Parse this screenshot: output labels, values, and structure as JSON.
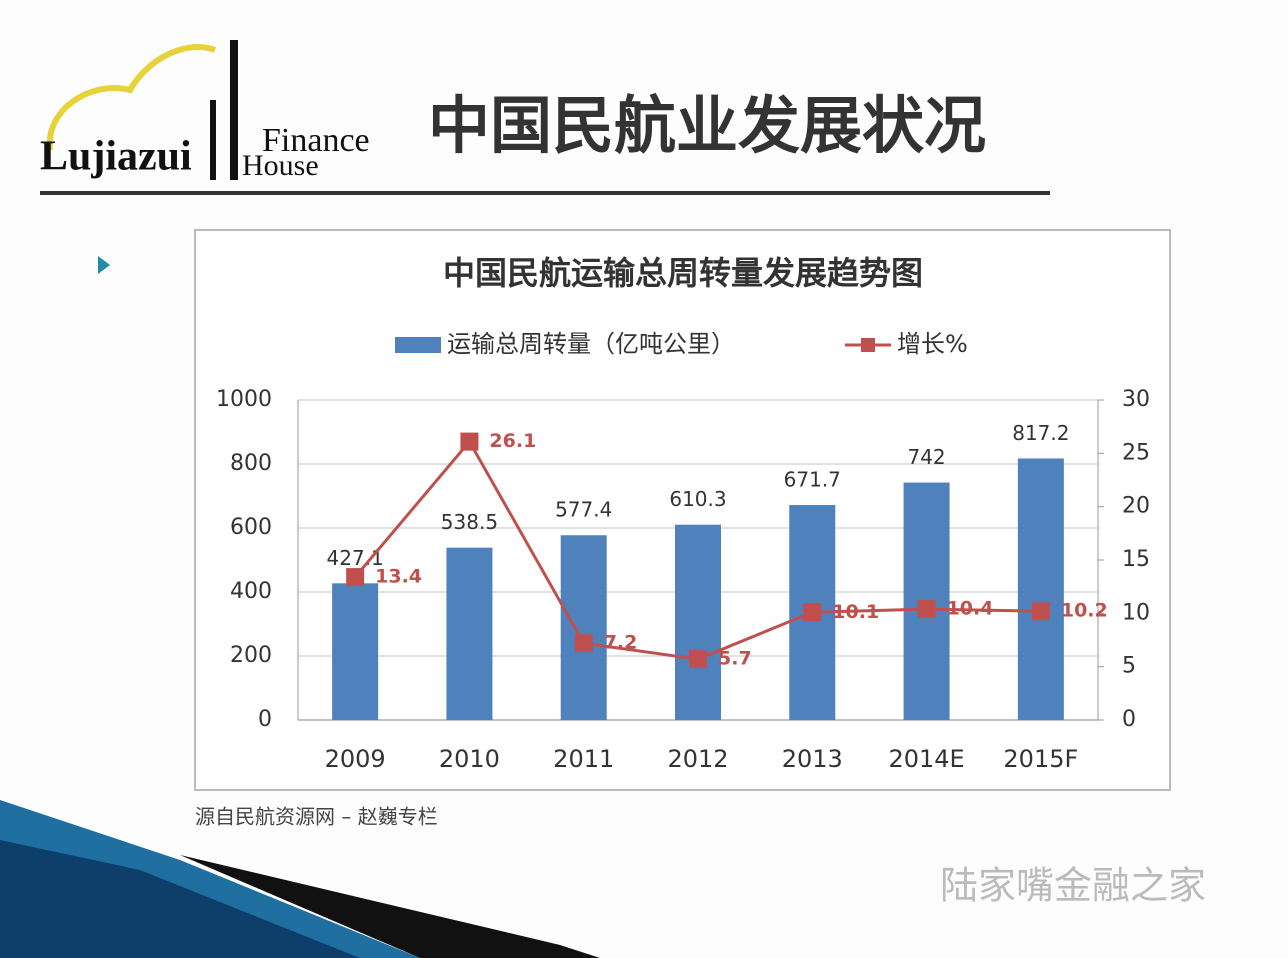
{
  "logo": {
    "main": "Lujiazui",
    "line1": "Finance",
    "line2": "House"
  },
  "slide_title": "中国民航业发展状况",
  "source": "源自民航资源网 – 赵巍专栏",
  "watermark": "陆家嘴金融之家",
  "chart_data": {
    "type": "bar",
    "title": "中国民航运输总周转量发展趋势图",
    "categories": [
      "2009",
      "2010",
      "2011",
      "2012",
      "2013",
      "2014E",
      "2015F"
    ],
    "series": [
      {
        "name": "运输总周转量（亿吨公里）",
        "type": "bar",
        "color": "#4f81bd",
        "values": [
          427.1,
          538.5,
          577.4,
          610.3,
          671.7,
          742,
          817.2
        ]
      },
      {
        "name": "增长%",
        "type": "line",
        "axis": "y2",
        "color": "#c0504d",
        "values": [
          13.4,
          26.1,
          7.2,
          5.7,
          10.1,
          10.4,
          10.2
        ]
      }
    ],
    "ylim": [
      0,
      1000
    ],
    "yticks": [
      0,
      200,
      400,
      600,
      800,
      1000
    ],
    "y2lim": [
      0,
      30
    ],
    "y2ticks": [
      0,
      5,
      10,
      15,
      20,
      25,
      30
    ],
    "grid": true
  }
}
